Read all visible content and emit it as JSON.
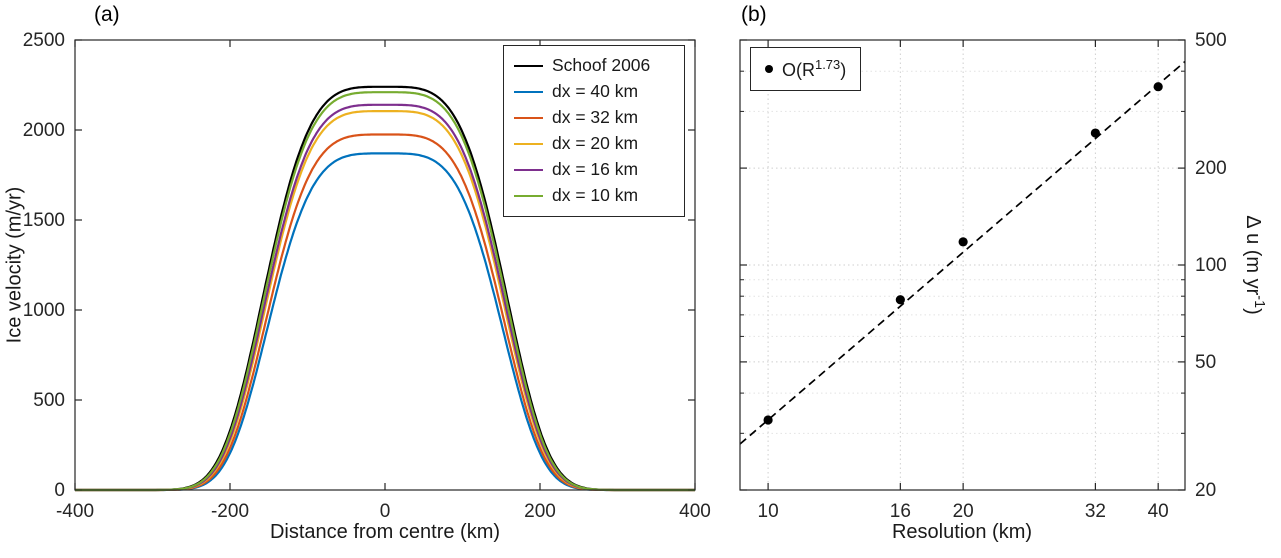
{
  "colors": {
    "axis": "#262626",
    "grid_major": "#cfcfcf",
    "grid_minor": "#e2e2e2",
    "background": "#ffffff"
  },
  "chart_data": [
    {
      "type": "line",
      "panel_label": "(a)",
      "title": "",
      "xlabel": "Distance from centre (km)",
      "ylabel": "Ice velocity (m/yr)",
      "xlim": [
        -400,
        400
      ],
      "ylim": [
        0,
        2500
      ],
      "xticks": [
        -400,
        -200,
        0,
        200,
        400
      ],
      "yticks": [
        0,
        500,
        1000,
        1500,
        2000,
        2500
      ],
      "grid": false,
      "legend_position": "upper right inside",
      "curve_model": "u(x) = peak_m_yr * exp(-(|x| / width_km)^4), x in km from -400 to 400",
      "series": [
        {
          "name": "Schoof 2006",
          "color": "#000000",
          "peak_m_yr": 2240,
          "width_km": 170
        },
        {
          "name": "dx = 40 km",
          "color": "#0072BD",
          "peak_m_yr": 1870,
          "width_km": 164
        },
        {
          "name": "dx = 32 km",
          "color": "#D95319",
          "peak_m_yr": 1975,
          "width_km": 165.5
        },
        {
          "name": "dx = 20 km",
          "color": "#EDB120",
          "peak_m_yr": 2105,
          "width_km": 167
        },
        {
          "name": "dx = 16 km",
          "color": "#7E2F8E",
          "peak_m_yr": 2140,
          "width_km": 168
        },
        {
          "name": "dx = 10 km",
          "color": "#77AC30",
          "peak_m_yr": 2210,
          "width_km": 169
        }
      ]
    },
    {
      "type": "scatter",
      "panel_label": "(b)",
      "title": "",
      "xlabel": "Resolution (km)",
      "ylabel": "Δ u (m yr⁻¹)",
      "ylabel_parts": {
        "base": "Δ u (m yr",
        "exponent": "-1",
        "close": ")"
      },
      "xscale": "log",
      "yscale": "log",
      "xlim": [
        9.05,
        44
      ],
      "ylim": [
        20,
        500
      ],
      "xticks": [
        10,
        16,
        20,
        32,
        40
      ],
      "yticks": [
        20,
        50,
        100,
        200,
        500
      ],
      "y_minor_gridlines": [
        30,
        40,
        60,
        70,
        80,
        90,
        300,
        400
      ],
      "grid": "dotted",
      "points": {
        "x": [
          10,
          16,
          20,
          32,
          40
        ],
        "y": [
          33,
          78,
          118,
          257,
          358
        ]
      },
      "fit_line": {
        "style": "dashed",
        "color": "#000000",
        "equation": "du = 0.615 * R^1.73",
        "coefficient": 0.615,
        "exponent": 1.73
      },
      "legend": {
        "marker": "filled-circle",
        "label_base": "O(R",
        "label_exponent": "1.73",
        "label_close": ")"
      }
    }
  ]
}
